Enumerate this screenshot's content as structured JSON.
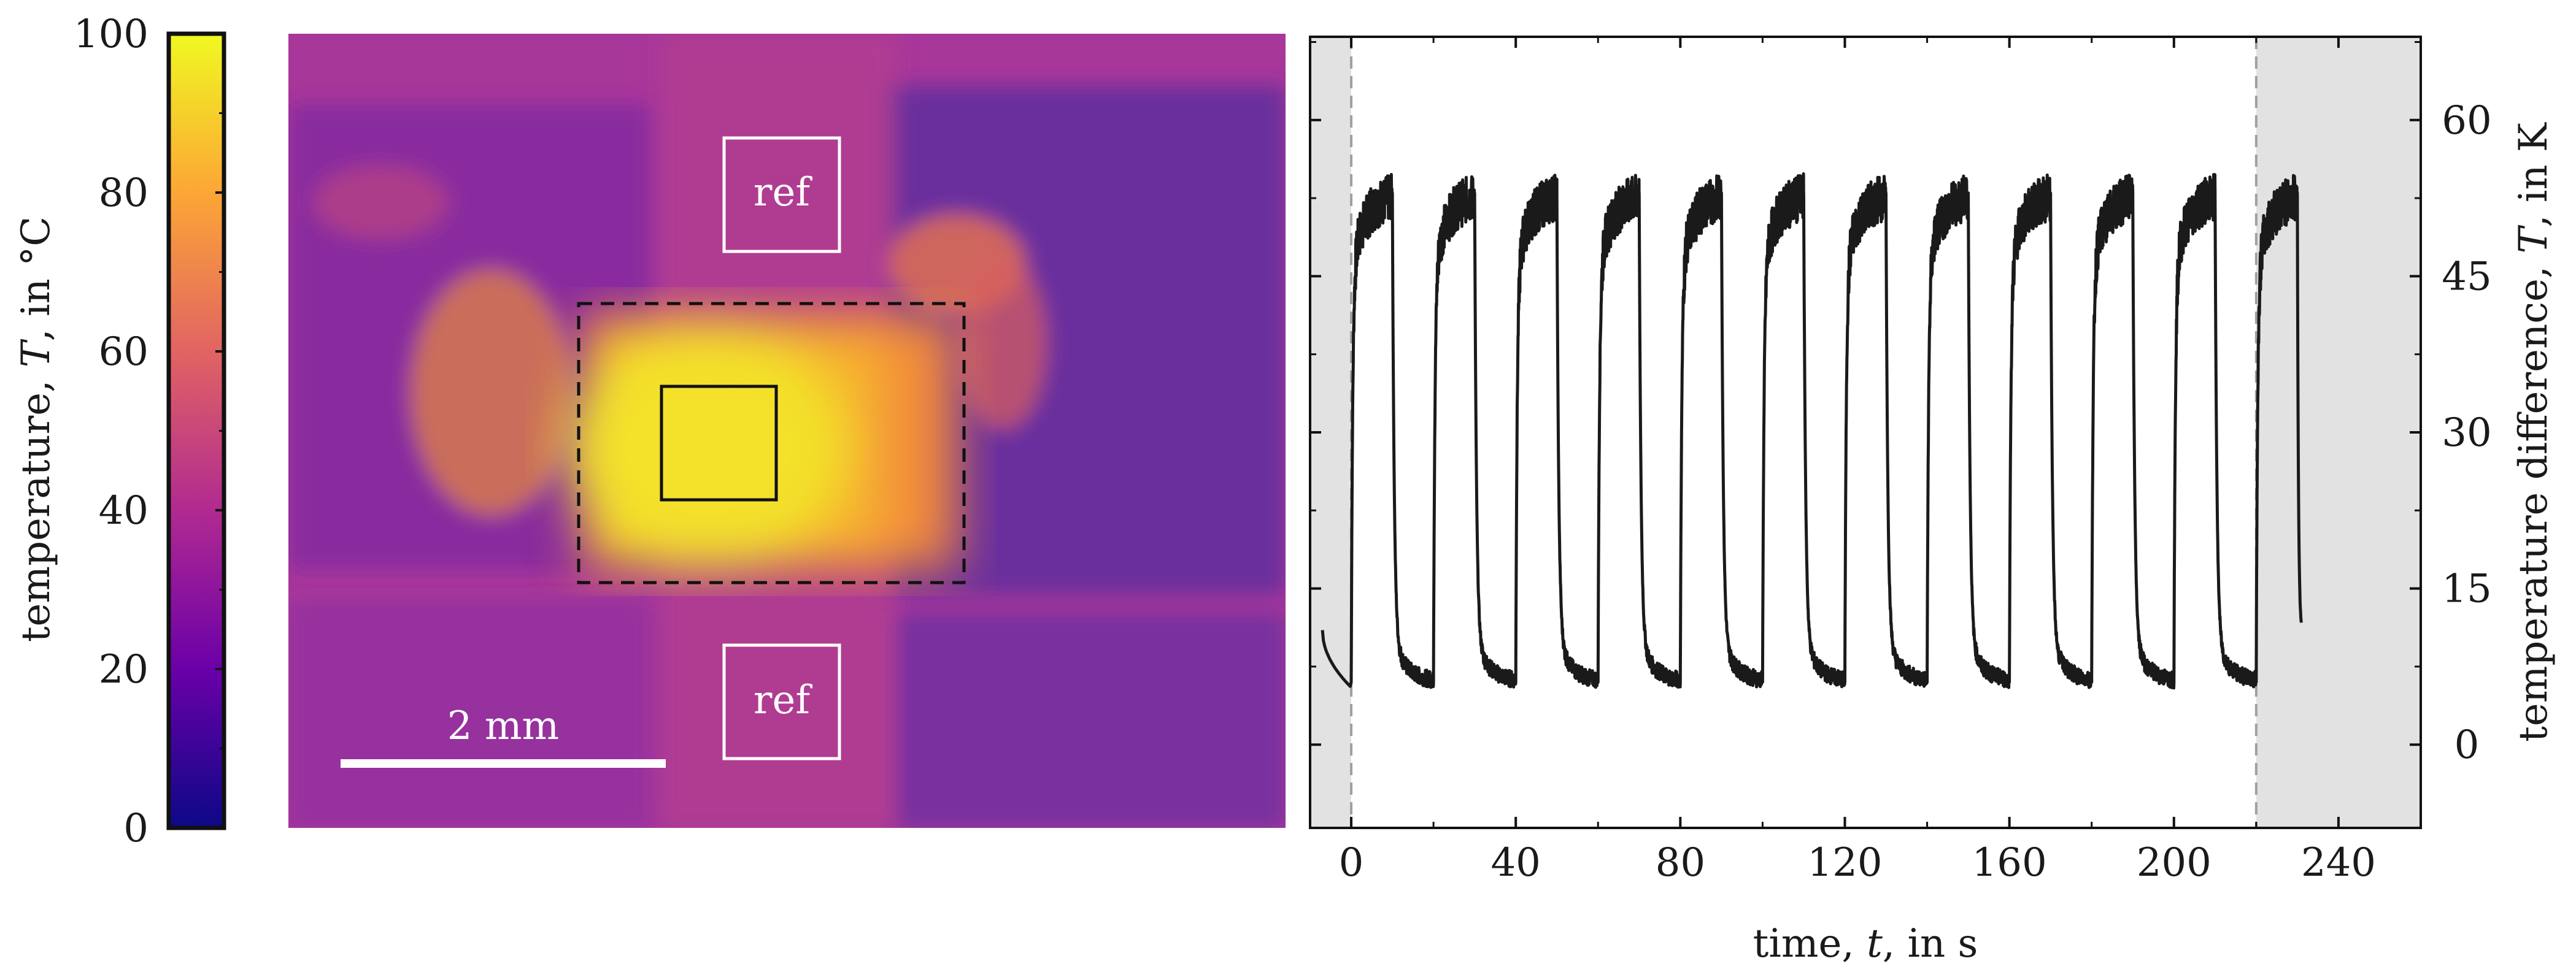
{
  "chart_data": [
    {
      "type": "heatmap",
      "colorbar": {
        "label_prefix": "temperature, ",
        "label_var": "T",
        "label_suffix": ", in °C",
        "range": [
          0,
          100
        ],
        "ticks": [
          "0",
          "20",
          "40",
          "60",
          "80",
          "100"
        ],
        "colormap": [
          "#0d0887",
          "#6a00a8",
          "#b12a90",
          "#e16462",
          "#fca636",
          "#f0f921"
        ]
      },
      "annotations": {
        "ref_top": "ref",
        "ref_bottom": "ref",
        "scale_bar": "2 mm"
      },
      "colors": {
        "background": "#a8379a",
        "hot_spot": "#f3e12a",
        "cool_region": "#5f2f9e"
      }
    },
    {
      "type": "line",
      "xlabel_prefix": "time, ",
      "xlabel_var": "t",
      "xlabel_suffix": ", in s",
      "ylabel_prefix": "temperature difference, ",
      "ylabel_var": "T",
      "ylabel_suffix": ", in K",
      "xlim": [
        -10,
        260
      ],
      "ylim": [
        -8,
        68
      ],
      "xticks": [
        "0",
        "40",
        "80",
        "120",
        "160",
        "200",
        "240"
      ],
      "yticks": [
        "0",
        "15",
        "30",
        "45",
        "60"
      ],
      "shaded_regions": [
        [
          -10,
          0
        ],
        [
          220,
          260
        ]
      ],
      "cycle": {
        "period_s": 20,
        "heating_s": 10,
        "first_on_s": 0,
        "cycles": 12,
        "high_K": [
          46,
          54
        ],
        "low_K": [
          6,
          8
        ],
        "start_K": 11,
        "end_K": 11,
        "end_t": 231
      },
      "colors": {
        "line": "#1a1a1a",
        "shade": "#e2e2e2",
        "boundary": "#a0a0a0"
      }
    }
  ]
}
